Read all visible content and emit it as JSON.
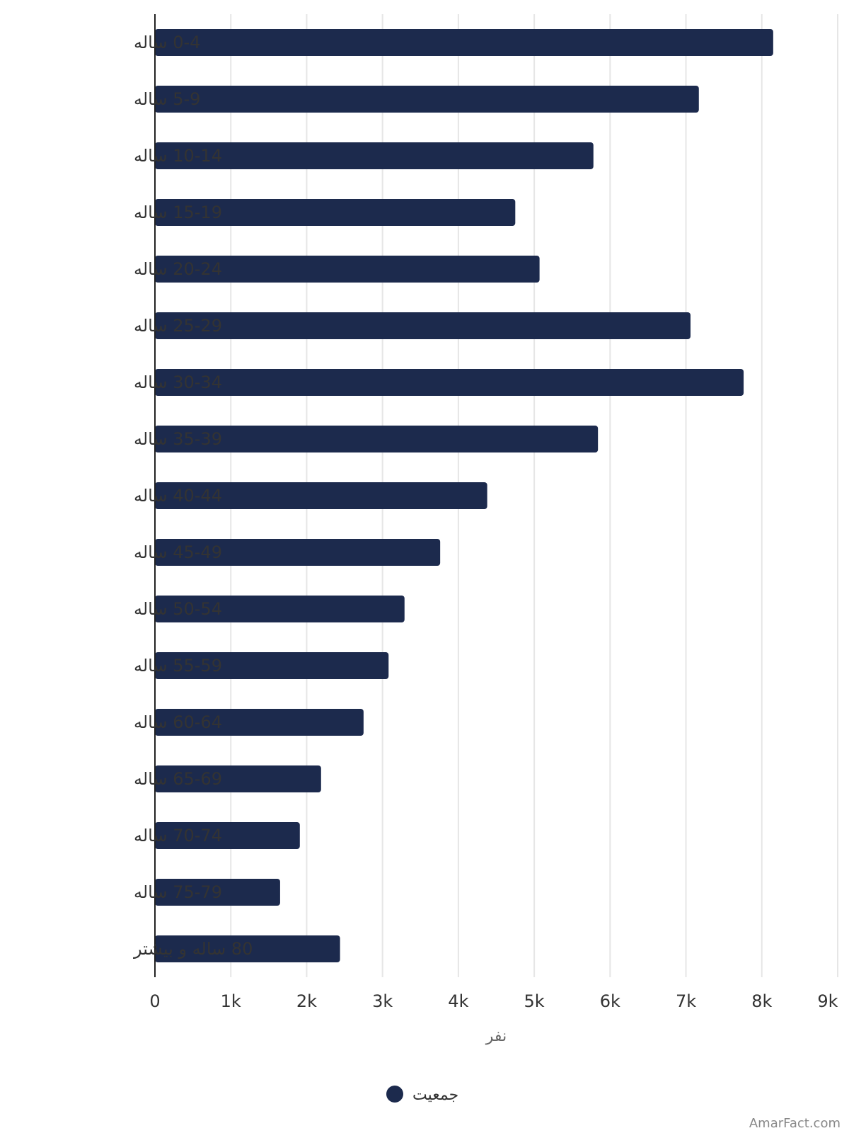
{
  "chart_data": {
    "type": "bar",
    "orientation": "horizontal",
    "categories": [
      "0-4 ساله",
      "5-9 ساله",
      "10-14 ساله",
      "15-19 ساله",
      "20-24 ساله",
      "25-29 ساله",
      "30-34 ساله",
      "35-39 ساله",
      "40-44 ساله",
      "45-49 ساله",
      "50-54 ساله",
      "55-59 ساله",
      "60-64 ساله",
      "65-69 ساله",
      "70-74 ساله",
      "75-79 ساله",
      "80 ساله و بیشتر"
    ],
    "series": [
      {
        "name": "جمعیت",
        "color": "#1c2a4d",
        "values": [
          8150,
          7170,
          5780,
          4750,
          5070,
          7060,
          7760,
          5840,
          4380,
          3760,
          3290,
          3080,
          2750,
          2190,
          1910,
          1650,
          2440
        ]
      }
    ],
    "xlabel": "نفر",
    "ylabel": "",
    "xlim": [
      0,
      9000
    ],
    "x_ticks": [
      {
        "value": 0,
        "label": "0"
      },
      {
        "value": 1000,
        "label": "1k"
      },
      {
        "value": 2000,
        "label": "2k"
      },
      {
        "value": 3000,
        "label": "3k"
      },
      {
        "value": 4000,
        "label": "4k"
      },
      {
        "value": 5000,
        "label": "5k"
      },
      {
        "value": 6000,
        "label": "6k"
      },
      {
        "value": 7000,
        "label": "7k"
      },
      {
        "value": 8000,
        "label": "8k"
      },
      {
        "value": 9000,
        "label": "9k"
      }
    ],
    "grid": true,
    "legend_position": "bottom-center",
    "watermark": "AmarFact.com"
  }
}
